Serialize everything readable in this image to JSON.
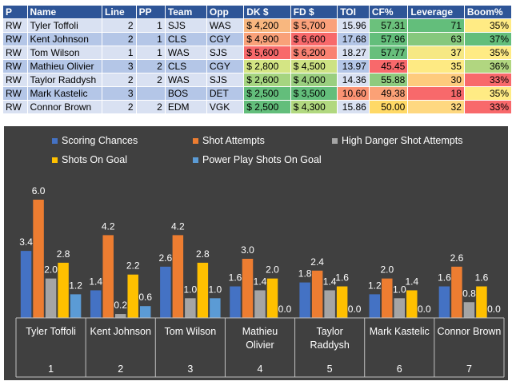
{
  "table": {
    "headers": [
      "P",
      "Name",
      "Line",
      "PP",
      "Team",
      "Opp",
      "DK $",
      "FD $",
      "TOI",
      "CF%",
      "Leverage",
      "Boom%"
    ],
    "rows": [
      [
        "RW",
        "Tyler Toffoli",
        "2",
        "1",
        "SJS",
        "WAS",
        "$ 4,200",
        "$ 5,700",
        "15.96",
        "57.31",
        "71",
        "35%"
      ],
      [
        "RW",
        "Kent Johnson",
        "2",
        "1",
        "CLS",
        "CGY",
        "$ 4,900",
        "$ 6,600",
        "17.68",
        "57.96",
        "63",
        "37%"
      ],
      [
        "RW",
        "Tom Wilson",
        "1",
        "1",
        "WAS",
        "SJS",
        "$ 5,600",
        "$ 6,200",
        "18.27",
        "57.77",
        "37",
        "35%"
      ],
      [
        "RW",
        "Mathieu Olivier",
        "3",
        "2",
        "CLS",
        "CGY",
        "$ 2,800",
        "$ 4,500",
        "13.97",
        "45.45",
        "35",
        "36%"
      ],
      [
        "RW",
        "Taylor Raddysh",
        "2",
        "2",
        "WAS",
        "SJS",
        "$ 2,600",
        "$ 4,000",
        "14.36",
        "55.88",
        "30",
        "33%"
      ],
      [
        "RW",
        "Mark Kastelic",
        "3",
        "",
        "BOS",
        "DET",
        "$ 2,500",
        "$ 3,500",
        "10.60",
        "49.38",
        "18",
        "35%"
      ],
      [
        "RW",
        "Connor Brown",
        "2",
        "2",
        "EDM",
        "VGK",
        "$ 2,500",
        "$ 4,300",
        "15.86",
        "50.00",
        "32",
        "33%"
      ]
    ],
    "cell_colors": {
      "dk": [
        "#f8b77f",
        "#f9a179",
        "#f8696b",
        "#d4e584",
        "#a6d580",
        "#63be7b",
        "#63be7b"
      ],
      "fd": [
        "#faa17b",
        "#f8696b",
        "#f98272",
        "#cde283",
        "#9acf7f",
        "#63be7b",
        "#b1d87f"
      ],
      "toi": [
        "#d9e1f2",
        "#b4c6e7",
        "#d9e1f2",
        "#b4c6e7",
        "#d9e1f2",
        "#fa9373",
        "#d9e1f2"
      ],
      "cf": [
        "#6bc17c",
        "#63be7b",
        "#67bf7c",
        "#f8696b",
        "#8ecb7e",
        "#fba176",
        "#ffd966"
      ],
      "leverage": [
        "#63be7b",
        "#86c87d",
        "#f6e883",
        "#feea83",
        "#fecb7d",
        "#f8696b",
        "#fed880"
      ],
      "boom": [
        "#ffeb84",
        "#63be7b",
        "#ffeb84",
        "#b1d680",
        "#f8696b",
        "#ffeb84",
        "#f8696b"
      ]
    }
  },
  "chart_data": {
    "type": "bar",
    "categories": [
      "Tyler Toffoli",
      "Kent Johnson",
      "Tom Wilson",
      "Mathieu Olivier",
      "Taylor Raddysh",
      "Mark Kastelic",
      "Connor Brown"
    ],
    "category_lines": [
      [
        "Tyler Toffoli"
      ],
      [
        "Kent Johnson"
      ],
      [
        "Tom Wilson"
      ],
      [
        "Mathieu",
        "Olivier"
      ],
      [
        "Taylor",
        "Raddysh"
      ],
      [
        "Mark Kastelic"
      ],
      [
        "Connor Brown"
      ]
    ],
    "group_numbers": [
      "1",
      "2",
      "3",
      "4",
      "5",
      "6",
      "7"
    ],
    "series": [
      {
        "name": "Scoring Chances",
        "color": "#4472c4",
        "values": [
          3.4,
          1.4,
          2.6,
          1.6,
          1.8,
          1.2,
          1.6
        ]
      },
      {
        "name": "Shot Attempts",
        "color": "#ed7d31",
        "values": [
          6.0,
          4.2,
          4.2,
          3.0,
          2.4,
          2.0,
          2.6
        ]
      },
      {
        "name": "High Danger Shot Attempts",
        "color": "#a5a5a5",
        "values": [
          2.0,
          0.2,
          1.0,
          1.4,
          1.4,
          1.0,
          0.8
        ]
      },
      {
        "name": "Shots On Goal",
        "color": "#ffc000",
        "values": [
          2.8,
          2.2,
          2.8,
          2.0,
          1.6,
          1.4,
          1.6
        ]
      },
      {
        "name": "Power Play Shots On Goal",
        "color": "#5b9bd5",
        "values": [
          1.2,
          0.6,
          1.0,
          0.0,
          0.0,
          0.0,
          0.0
        ]
      }
    ],
    "ylim": [
      0,
      6.0
    ],
    "grid": false,
    "legend": "top",
    "background": "#404040"
  }
}
